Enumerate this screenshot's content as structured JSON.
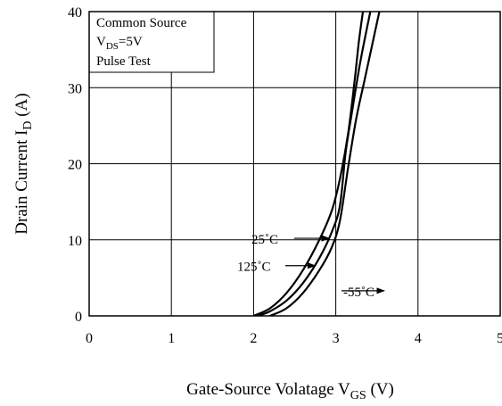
{
  "chart_data": {
    "type": "line",
    "xlabel": {
      "main": "Gate-Source Volatage  V",
      "sub": "GS",
      "unit": " (V)"
    },
    "ylabel": {
      "main": "Drain Current  I",
      "sub": "D",
      "unit": " (A)"
    },
    "xlim": [
      0,
      5
    ],
    "ylim": [
      0,
      40
    ],
    "x_ticks": [
      0,
      1,
      2,
      3,
      4,
      5
    ],
    "y_ticks": [
      0,
      10,
      20,
      30,
      40
    ],
    "grid": true,
    "legend_box": {
      "line1": "Common Source",
      "line2_main": "V",
      "line2_sub": "DS",
      "line2_rest": "=5V",
      "line3": "Pulse Test"
    },
    "series": [
      {
        "label": "25˚C",
        "x": [
          2.05,
          2.2,
          2.4,
          2.6,
          2.8,
          2.95,
          3.05,
          3.12,
          3.2,
          3.3,
          3.42
        ],
        "y": [
          0,
          0.6,
          2.0,
          4.3,
          7.6,
          11.0,
          14.5,
          21.5,
          27.0,
          33.5,
          40.0
        ]
      },
      {
        "label": "125˚C",
        "x": [
          2.0,
          2.2,
          2.4,
          2.6,
          2.8,
          2.95,
          3.05,
          3.15,
          3.23,
          3.28,
          3.33
        ],
        "y": [
          0,
          1.0,
          3.0,
          6.0,
          10.0,
          13.8,
          18.0,
          24.0,
          31.0,
          36.0,
          40.0
        ]
      },
      {
        "label": "-55˚C",
        "x": [
          2.2,
          2.4,
          2.6,
          2.8,
          2.95,
          3.05,
          3.15,
          3.25,
          3.35,
          3.45,
          3.53
        ],
        "y": [
          0,
          1.0,
          3.0,
          6.0,
          9.0,
          12.5,
          19.5,
          26.0,
          31.0,
          36.0,
          40.0
        ]
      }
    ],
    "annotations": [
      {
        "text": "25˚C",
        "target_x": 2.95,
        "target_y": 10.2
      },
      {
        "text": "125˚C",
        "target_x": 2.78,
        "target_y": 6.6
      },
      {
        "text": "-55˚C",
        "target_x": 2.72,
        "target_y": 3.3
      }
    ]
  }
}
